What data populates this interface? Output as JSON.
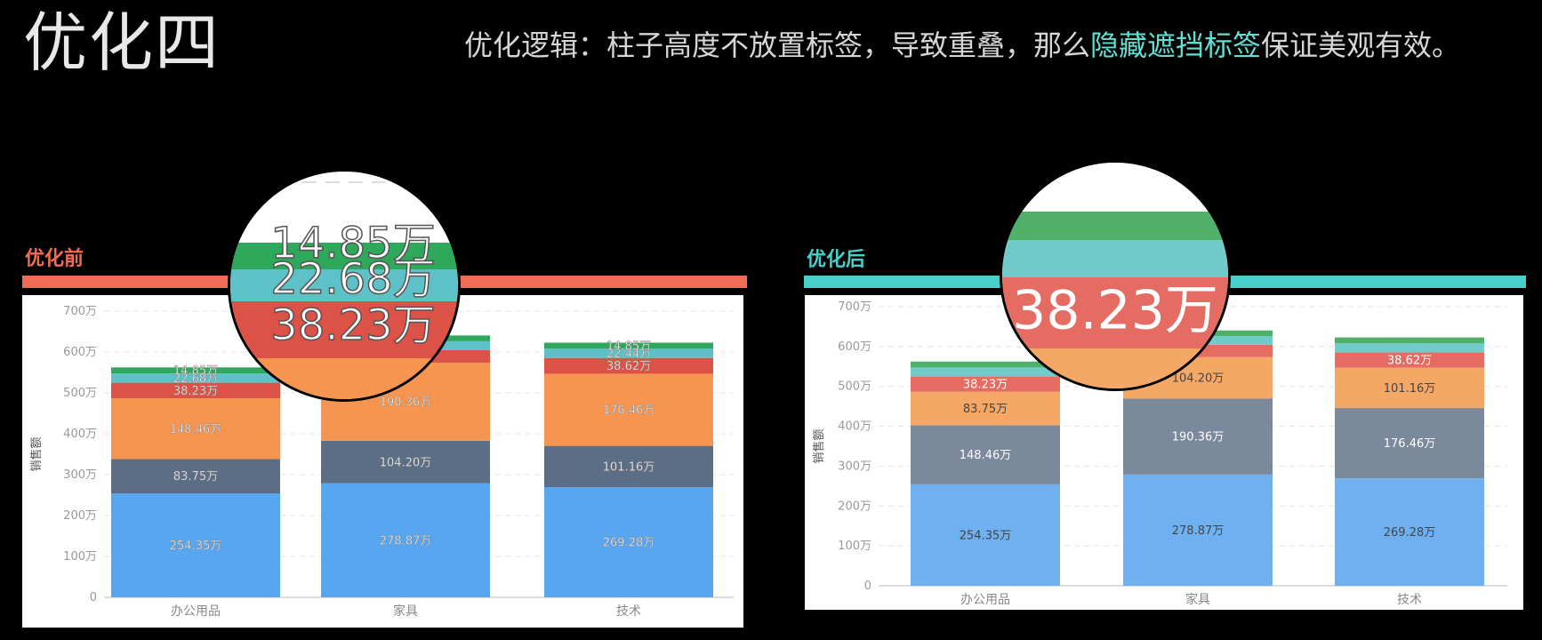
{
  "header": {
    "title": "优化四",
    "subtitle_pre": "优化逻辑：柱子高度不放置标签，导致重叠，那么",
    "subtitle_highlight": "隐藏遮挡标签",
    "subtitle_post": "保证美观有效。"
  },
  "colors": {
    "before_accent": "#f26b55",
    "after_accent": "#47cfc9",
    "highlight": "#5ee0d2"
  },
  "sections": {
    "before_label": "优化前",
    "after_label": "优化后"
  },
  "lens_before": {
    "labels": [
      "14.85万",
      "22.68万",
      "38.23万"
    ]
  },
  "lens_after": {
    "labels": [
      "38.23万"
    ]
  },
  "chart_data": [
    {
      "type": "bar",
      "stacked": true,
      "title": "优化前",
      "ylabel": "销售额",
      "ylim": [
        0,
        700
      ],
      "yticks": [
        "0",
        "100万",
        "200万",
        "300万",
        "400万",
        "500万",
        "600万",
        "700万"
      ],
      "grid": true,
      "categories": [
        "办公用品",
        "家具",
        "技术"
      ],
      "series": [
        {
          "values": [
            254.35,
            278.87,
            269.28
          ],
          "labels": [
            "254.35万",
            "278.87万",
            "269.28万"
          ],
          "color": "#58a5f0"
        },
        {
          "values": [
            83.75,
            104.2,
            101.16
          ],
          "labels": [
            "83.75万",
            "104.20万",
            "101.16万"
          ],
          "color": "#5b6e85"
        },
        {
          "values": [
            148.46,
            190.36,
            176.46
          ],
          "labels": [
            "148.46万",
            "190.36万",
            "176.46万"
          ],
          "color": "#f79450"
        },
        {
          "values": [
            38.23,
            31.0,
            38.62
          ],
          "labels": [
            "38.23万",
            "",
            "38.62万"
          ],
          "color": "#dd5247"
        },
        {
          "values": [
            22.68,
            22.0,
            22.44
          ],
          "labels": [
            "22.68万",
            "",
            "22.44万"
          ],
          "color": "#5fc1c8"
        },
        {
          "values": [
            14.85,
            14.0,
            14.85
          ],
          "labels": [
            "14.85万",
            "",
            "14.85万"
          ],
          "color": "#2ea85a"
        }
      ]
    },
    {
      "type": "bar",
      "stacked": true,
      "title": "优化后",
      "ylabel": "销售额",
      "ylim": [
        0,
        700
      ],
      "yticks": [
        "0",
        "100万",
        "200万",
        "300万",
        "400万",
        "500万",
        "600万",
        "700万"
      ],
      "grid": true,
      "categories": [
        "办公用品",
        "家具",
        "技术"
      ],
      "series": [
        {
          "values": [
            254.35,
            278.87,
            269.28
          ],
          "labels": [
            "254.35万",
            "278.87万",
            "269.28万"
          ],
          "color": "#6fb1f0"
        },
        {
          "values": [
            148.46,
            190.36,
            176.46
          ],
          "labels": [
            "148.46万",
            "190.36万",
            "176.46万"
          ],
          "color": "#7a899b"
        },
        {
          "values": [
            83.75,
            104.2,
            101.16
          ],
          "labels": [
            "83.75万",
            "104.20万",
            "101.16万"
          ],
          "color": "#f5a766"
        },
        {
          "values": [
            38.23,
            31.0,
            38.62
          ],
          "labels": [
            "38.23万",
            "",
            "38.62万"
          ],
          "color": "#e46c62"
        },
        {
          "values": [
            22.68,
            22.0,
            22.44
          ],
          "labels": [
            "",
            "",
            ""
          ],
          "color": "#71cbcb"
        },
        {
          "values": [
            14.85,
            14.0,
            14.85
          ],
          "labels": [
            "",
            "",
            ""
          ],
          "color": "#50b06a"
        }
      ]
    }
  ]
}
